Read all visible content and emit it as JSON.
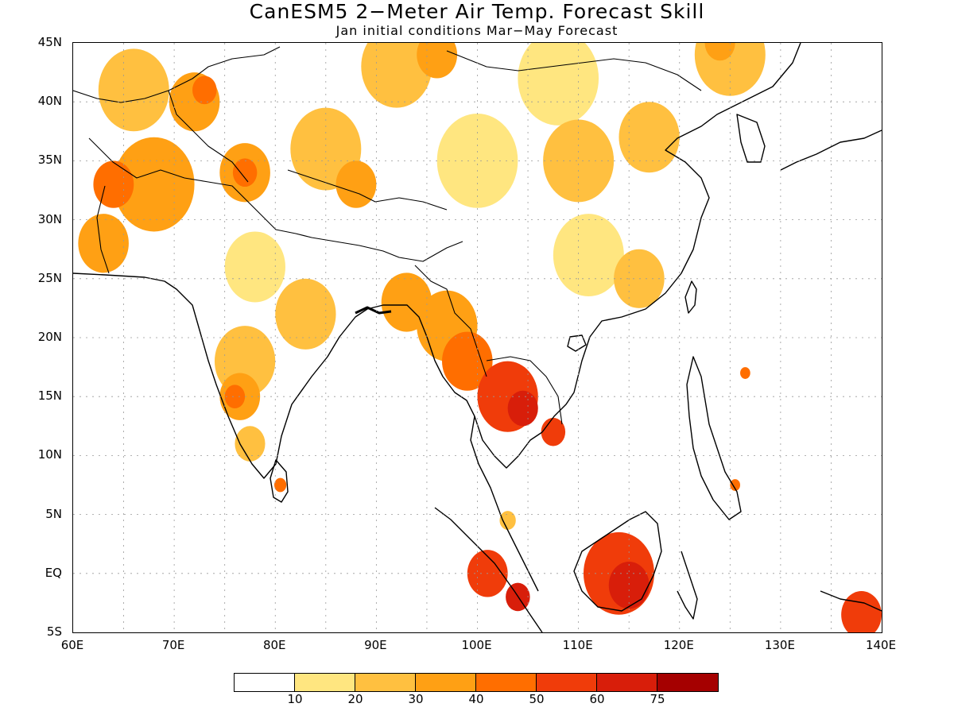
{
  "title": "CanESM5 2−Meter Air Temp. Forecast Skill",
  "subtitle": "Jan initial conditions  Mar−May Forecast",
  "lat_labels": [
    "45N",
    "40N",
    "35N",
    "30N",
    "25N",
    "20N",
    "15N",
    "10N",
    "5N",
    "EQ",
    "5S"
  ],
  "lon_labels": [
    "60E",
    "70E",
    "80E",
    "90E",
    "100E",
    "110E",
    "120E",
    "130E",
    "140E"
  ],
  "colorbar": {
    "colors": [
      "#ffffff",
      "#ffe680",
      "#ffc040",
      "#ffa014",
      "#ff6e00",
      "#f03c0a",
      "#d81e0a",
      "#a50000"
    ],
    "labels": [
      "10",
      "20",
      "30",
      "40",
      "50",
      "60",
      "75"
    ]
  },
  "map_extent": {
    "lon_min": 60,
    "lon_max": 140,
    "lat_min": -5,
    "lat_max": 45,
    "grid_step": 5
  },
  "skill_regions": [
    {
      "level": 3,
      "lat": 33,
      "lon": 68,
      "r": 4
    },
    {
      "level": 4,
      "lat": 33,
      "lon": 64,
      "r": 2
    },
    {
      "level": 3,
      "lat": 28,
      "lon": 63,
      "r": 2.5
    },
    {
      "level": 2,
      "lat": 41,
      "lon": 66,
      "r": 3.5
    },
    {
      "level": 3,
      "lat": 40,
      "lon": 72,
      "r": 2.5
    },
    {
      "level": 4,
      "lat": 41,
      "lon": 73,
      "r": 1.2
    },
    {
      "level": 3,
      "lat": 34,
      "lon": 77,
      "r": 2.5
    },
    {
      "level": 4,
      "lat": 34,
      "lon": 77,
      "r": 1.2
    },
    {
      "level": 2,
      "lat": 36,
      "lon": 85,
      "r": 3.5
    },
    {
      "level": 3,
      "lat": 33,
      "lon": 88,
      "r": 2
    },
    {
      "level": 2,
      "lat": 43,
      "lon": 92,
      "r": 3.5
    },
    {
      "level": 3,
      "lat": 44,
      "lon": 96,
      "r": 2
    },
    {
      "level": 1,
      "lat": 35,
      "lon": 100,
      "r": 4
    },
    {
      "level": 2,
      "lat": 35,
      "lon": 110,
      "r": 3.5
    },
    {
      "level": 1,
      "lat": 42,
      "lon": 108,
      "r": 4
    },
    {
      "level": 2,
      "lat": 44,
      "lon": 125,
      "r": 3.5
    },
    {
      "level": 3,
      "lat": 45,
      "lon": 124,
      "r": 1.5
    },
    {
      "level": 2,
      "lat": 37,
      "lon": 117,
      "r": 3
    },
    {
      "level": 1,
      "lat": 27,
      "lon": 111,
      "r": 3.5
    },
    {
      "level": 2,
      "lat": 25,
      "lon": 116,
      "r": 2.5
    },
    {
      "level": 2,
      "lat": 22,
      "lon": 83,
      "r": 3
    },
    {
      "level": 1,
      "lat": 26,
      "lon": 78,
      "r": 3
    },
    {
      "level": 2,
      "lat": 18,
      "lon": 77,
      "r": 3
    },
    {
      "level": 3,
      "lat": 15,
      "lon": 76.5,
      "r": 2
    },
    {
      "level": 4,
      "lat": 15,
      "lon": 76,
      "r": 1
    },
    {
      "level": 2,
      "lat": 11,
      "lon": 77.5,
      "r": 1.5
    },
    {
      "level": 4,
      "lat": 7.5,
      "lon": 80.5,
      "r": 0.6
    },
    {
      "level": 3,
      "lat": 23,
      "lon": 93,
      "r": 2.5
    },
    {
      "level": 3,
      "lat": 21,
      "lon": 97,
      "r": 3
    },
    {
      "level": 4,
      "lat": 18,
      "lon": 99,
      "r": 2.5
    },
    {
      "level": 5,
      "lat": 15,
      "lon": 103,
      "r": 3
    },
    {
      "level": 6,
      "lat": 14,
      "lon": 104.5,
      "r": 1.5
    },
    {
      "level": 5,
      "lat": 12,
      "lon": 107.5,
      "r": 1.2
    },
    {
      "level": 4,
      "lat": 17,
      "lon": 126.5,
      "r": 0.5
    },
    {
      "level": 4,
      "lat": 7.5,
      "lon": 125.5,
      "r": 0.5
    },
    {
      "level": 5,
      "lat": 0,
      "lon": 114,
      "r": 3.5
    },
    {
      "level": 6,
      "lat": -1,
      "lon": 115,
      "r": 2
    },
    {
      "level": 5,
      "lat": 0,
      "lon": 101,
      "r": 2
    },
    {
      "level": 6,
      "lat": -2,
      "lon": 104,
      "r": 1.2
    },
    {
      "level": 2,
      "lat": 4.5,
      "lon": 103,
      "r": 0.8
    },
    {
      "level": 5,
      "lat": -3.5,
      "lon": 138,
      "r": 2
    }
  ]
}
